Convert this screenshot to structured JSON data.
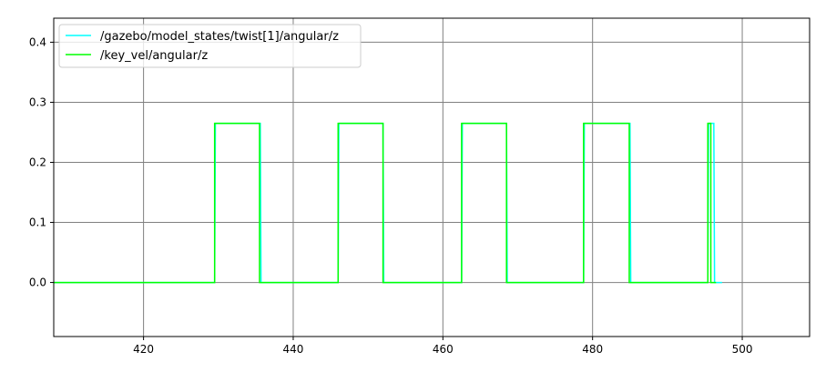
{
  "chart_data": {
    "type": "line",
    "title": "",
    "xlabel": "",
    "ylabel": "",
    "xlim": [
      408,
      509
    ],
    "ylim": [
      -0.09,
      0.44
    ],
    "xticks": [
      420,
      440,
      460,
      480,
      500
    ],
    "yticks": [
      0.0,
      0.1,
      0.2,
      0.3,
      0.4
    ],
    "xtick_labels": [
      "420",
      "440",
      "460",
      "480",
      "500"
    ],
    "ytick_labels": [
      "0.0",
      "0.1",
      "0.2",
      "0.3",
      "0.4"
    ],
    "grid": true,
    "legend_position": "top-left",
    "series": [
      {
        "name": "/gazebo/model_states/twist[1]/angular/z",
        "color": "#00ffff",
        "x": [
          408,
          429.5,
          429.6,
          435.6,
          435.7,
          446.0,
          446.1,
          452.0,
          452.1,
          462.5,
          462.6,
          468.5,
          468.6,
          478.8,
          478.9,
          485.0,
          485.1,
          495.4,
          495.5,
          496.2,
          496.3,
          497.3
        ],
        "y": [
          0.0,
          0.0,
          0.265,
          0.265,
          0.0,
          0.0,
          0.265,
          0.265,
          0.0,
          0.0,
          0.265,
          0.265,
          0.0,
          0.0,
          0.265,
          0.265,
          0.0,
          0.0,
          0.265,
          0.265,
          0.0,
          0.0
        ]
      },
      {
        "name": "/key_vel/angular/z",
        "color": "#00ff00",
        "x": [
          408,
          429.5,
          429.5,
          435.5,
          435.5,
          446.0,
          446.0,
          452.0,
          452.0,
          462.5,
          462.5,
          468.5,
          468.5,
          478.8,
          478.8,
          484.9,
          484.9,
          495.4,
          495.4,
          495.8,
          495.8,
          496.5
        ],
        "y": [
          0.0,
          0.0,
          0.265,
          0.265,
          0.0,
          0.0,
          0.265,
          0.265,
          0.0,
          0.0,
          0.265,
          0.265,
          0.0,
          0.0,
          0.265,
          0.265,
          0.0,
          0.0,
          0.265,
          0.265,
          0.0,
          0.0
        ]
      }
    ]
  }
}
